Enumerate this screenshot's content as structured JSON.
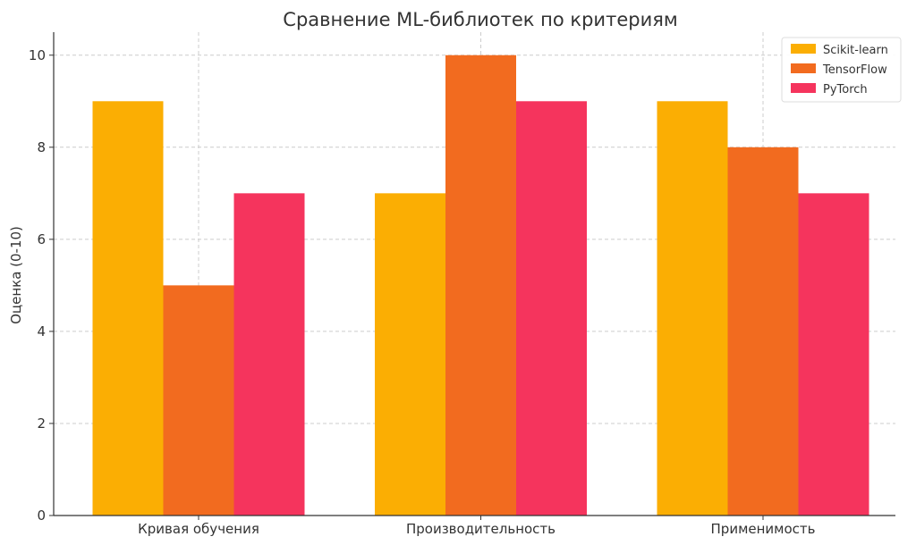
{
  "chart_data": {
    "type": "bar",
    "title": "Сравнение ML-библиотек по критериям",
    "xlabel": "",
    "ylabel": "Оценка (0-10)",
    "categories": [
      "Кривая обучения",
      "Производительность",
      "Применимость"
    ],
    "series": [
      {
        "name": "Scikit-learn",
        "color": "#FBAE03",
        "values": [
          9,
          7,
          9
        ]
      },
      {
        "name": "TensorFlow",
        "color": "#F26B1F",
        "values": [
          5,
          10,
          8
        ]
      },
      {
        "name": "PyTorch",
        "color": "#F5345D",
        "values": [
          7,
          9,
          7
        ]
      }
    ],
    "ylim": [
      0,
      10.5
    ],
    "yticks": [
      0,
      2,
      4,
      6,
      8,
      10
    ],
    "grid": true,
    "legend_position": "top-right"
  }
}
